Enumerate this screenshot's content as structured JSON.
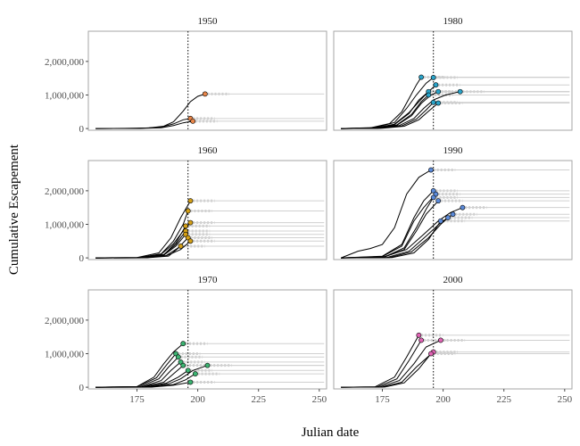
{
  "chart_data": {
    "type": "line",
    "layout": "facet-grid-3x2",
    "xlabel": "Julian date",
    "ylabel": "Cumulative Escapement",
    "xlim": [
      155,
      253
    ],
    "ylim": [
      -50000,
      2900000
    ],
    "x_ticks": [
      175,
      200,
      225,
      250
    ],
    "x_tick_labels": [
      "175",
      "200",
      "225",
      "250"
    ],
    "y_ticks": [
      0,
      1000000,
      2000000
    ],
    "y_tick_labels": [
      "0",
      "1,000,000",
      "2,000,000"
    ],
    "reference_line_x": 196,
    "grid": false,
    "colors": {
      "line": "#000000",
      "faded_tail": "#d0d0d0",
      "panel_border": "#a6a6a6",
      "ref_line": "#000000"
    },
    "panels": [
      {
        "label": "1950",
        "point_color": "#e8864a",
        "series": [
          {
            "x": [
              158,
              170,
              180,
              186,
              190,
              194,
              197,
              200,
              203
            ],
            "y": [
              0,
              5000,
              20000,
              70000,
              200000,
              520000,
              800000,
              960000,
              1030000
            ]
          },
          {
            "x": [
              158,
              175,
              185,
              190,
              194,
              197
            ],
            "y": [
              0,
              3000,
              40000,
              140000,
              260000,
              300000
            ]
          },
          {
            "x": [
              158,
              175,
              185,
              190,
              194,
              198
            ],
            "y": [
              0,
              2000,
              25000,
              90000,
              170000,
              220000
            ]
          }
        ]
      },
      {
        "label": "1980",
        "point_color": "#29a3c9",
        "series": [
          {
            "x": [
              158,
              170,
              178,
              183,
              186,
              189,
              191
            ],
            "y": [
              0,
              20000,
              150000,
              500000,
              900000,
              1300000,
              1530000
            ]
          },
          {
            "x": [
              158,
              172,
              180,
              185,
              189,
              193,
              196
            ],
            "y": [
              0,
              30000,
              180000,
              600000,
              1000000,
              1350000,
              1520000
            ]
          },
          {
            "x": [
              158,
              172,
              180,
              186,
              190,
              194
            ],
            "y": [
              0,
              15000,
              120000,
              450000,
              850000,
              1100000
            ]
          },
          {
            "x": [
              158,
              173,
              181,
              187,
              191,
              195,
              198
            ],
            "y": [
              0,
              10000,
              100000,
              380000,
              750000,
              1000000,
              1100000
            ]
          },
          {
            "x": [
              158,
              172,
              180,
              186,
              190,
              194,
              197
            ],
            "y": [
              0,
              20000,
              130000,
              480000,
              800000,
              1100000,
              1300000
            ]
          },
          {
            "x": [
              158,
              173,
              182,
              188,
              192,
              196,
              201,
              207
            ],
            "y": [
              0,
              10000,
              90000,
              300000,
              600000,
              850000,
              1000000,
              1100000
            ]
          },
          {
            "x": [
              158,
              174,
              183,
              189,
              193,
              196
            ],
            "y": [
              0,
              10000,
              80000,
              280000,
              550000,
              780000
            ]
          },
          {
            "x": [
              158,
              175,
              184,
              190,
              194,
              198
            ],
            "y": [
              0,
              8000,
              70000,
              260000,
              520000,
              760000
            ]
          },
          {
            "x": [
              158,
              172,
              181,
              187,
              191,
              194
            ],
            "y": [
              0,
              15000,
              110000,
              420000,
              800000,
              1000000
            ]
          }
        ]
      },
      {
        "label": "1960",
        "point_color": "#d4a017",
        "series": [
          {
            "x": [
              158,
              175,
              184,
              189,
              193,
              197
            ],
            "y": [
              0,
              10000,
              150000,
              600000,
              1200000,
              1700000
            ]
          },
          {
            "x": [
              158,
              176,
              185,
              190,
              194,
              196
            ],
            "y": [
              0,
              8000,
              120000,
              500000,
              1000000,
              1400000
            ]
          },
          {
            "x": [
              158,
              177,
              186,
              191,
              195
            ],
            "y": [
              0,
              6000,
              90000,
              450000,
              950000
            ]
          },
          {
            "x": [
              158,
              176,
              185,
              190,
              194,
              197
            ],
            "y": [
              0,
              10000,
              110000,
              420000,
              800000,
              1050000
            ]
          },
          {
            "x": [
              158,
              177,
              186,
              191,
              195
            ],
            "y": [
              0,
              5000,
              100000,
              400000,
              800000
            ]
          },
          {
            "x": [
              158,
              177,
              186,
              191,
              195
            ],
            "y": [
              0,
              5000,
              80000,
              350000,
              700000
            ]
          },
          {
            "x": [
              158,
              178,
              187,
              192,
              196
            ],
            "y": [
              0,
              4000,
              70000,
              300000,
              600000
            ]
          },
          {
            "x": [
              158,
              178,
              187,
              193,
              197
            ],
            "y": [
              0,
              4000,
              60000,
              250000,
              500000
            ]
          },
          {
            "x": [
              158,
              179,
              188,
              193
            ],
            "y": [
              0,
              3000,
              50000,
              350000
            ]
          }
        ]
      },
      {
        "label": "1990",
        "point_color": "#5b8ad9",
        "series": [
          {
            "x": [
              158,
              165,
              170,
              175,
              180,
              185,
              190,
              195
            ],
            "y": [
              0,
              200000,
              280000,
              400000,
              900000,
              1900000,
              2400000,
              2620000
            ]
          },
          {
            "x": [
              158,
              175,
              183,
              188,
              192,
              196
            ],
            "y": [
              0,
              50000,
              400000,
              1200000,
              1700000,
              2000000
            ]
          },
          {
            "x": [
              158,
              175,
              183,
              188,
              192,
              197
            ],
            "y": [
              0,
              40000,
              350000,
              1100000,
              1500000,
              1900000
            ]
          },
          {
            "x": [
              158,
              176,
              184,
              189,
              193,
              196
            ],
            "y": [
              0,
              30000,
              300000,
              900000,
              1450000,
              1800000
            ]
          },
          {
            "x": [
              158,
              176,
              184,
              189,
              193,
              198
            ],
            "y": [
              0,
              30000,
              250000,
              800000,
              1300000,
              1700000
            ]
          },
          {
            "x": [
              158,
              175,
              185,
              192,
              198,
              203,
              208
            ],
            "y": [
              0,
              20000,
              250000,
              700000,
              1100000,
              1350000,
              1500000
            ]
          },
          {
            "x": [
              158,
              177,
              186,
              193,
              199,
              204
            ],
            "y": [
              0,
              15000,
              200000,
              650000,
              1050000,
              1300000
            ]
          },
          {
            "x": [
              158,
              178,
              187,
              194,
              199,
              202
            ],
            "y": [
              0,
              10000,
              180000,
              600000,
              1000000,
              1200000
            ]
          },
          {
            "x": [
              158,
              179,
              188,
              194,
              199
            ],
            "y": [
              0,
              8000,
              150000,
              550000,
              1100000
            ]
          }
        ]
      },
      {
        "label": "1970",
        "point_color": "#3cb371",
        "series": [
          {
            "x": [
              158,
              175,
              182,
              186,
              190,
              194
            ],
            "y": [
              0,
              20000,
              300000,
              700000,
              1050000,
              1300000
            ]
          },
          {
            "x": [
              158,
              175,
              183,
              187,
              191
            ],
            "y": [
              0,
              15000,
              280000,
              650000,
              1000000
            ]
          },
          {
            "x": [
              158,
              176,
              184,
              188,
              192
            ],
            "y": [
              0,
              12000,
              250000,
              600000,
              900000
            ]
          },
          {
            "x": [
              158,
              177,
              185,
              189,
              193
            ],
            "y": [
              0,
              10000,
              200000,
              500000,
              750000
            ]
          },
          {
            "x": [
              158,
              177,
              186,
              190,
              194
            ],
            "y": [
              0,
              8000,
              150000,
              400000,
              650000
            ]
          },
          {
            "x": [
              158,
              178,
              187,
              192,
              196
            ],
            "y": [
              0,
              6000,
              120000,
              300000,
              500000
            ]
          },
          {
            "x": [
              158,
              179,
              188,
              193,
              198,
              204
            ],
            "y": [
              0,
              5000,
              100000,
              250000,
              500000,
              650000
            ]
          },
          {
            "x": [
              158,
              180,
              190,
              195,
              199
            ],
            "y": [
              0,
              4000,
              80000,
              220000,
              400000
            ]
          },
          {
            "x": [
              158,
              181,
              190,
              197
            ],
            "y": [
              0,
              3000,
              60000,
              150000
            ]
          }
        ]
      },
      {
        "label": "2000",
        "point_color": "#e064b4",
        "series": [
          {
            "x": [
              158,
              172,
              180,
              185,
              190
            ],
            "y": [
              0,
              10000,
              300000,
              900000,
              1550000
            ]
          },
          {
            "x": [
              158,
              173,
              181,
              186,
              191
            ],
            "y": [
              0,
              10000,
              250000,
              800000,
              1400000
            ]
          },
          {
            "x": [
              158,
              174,
              182,
              188,
              193,
              199
            ],
            "y": [
              0,
              8000,
              200000,
              700000,
              1200000,
              1400000
            ]
          },
          {
            "x": [
              158,
              175,
              183,
              189,
              196
            ],
            "y": [
              0,
              5000,
              150000,
              600000,
              1050000
            ]
          },
          {
            "x": [
              158,
              176,
              184,
              190,
              195
            ],
            "y": [
              0,
              5000,
              130000,
              550000,
              1000000
            ]
          }
        ]
      }
    ]
  }
}
